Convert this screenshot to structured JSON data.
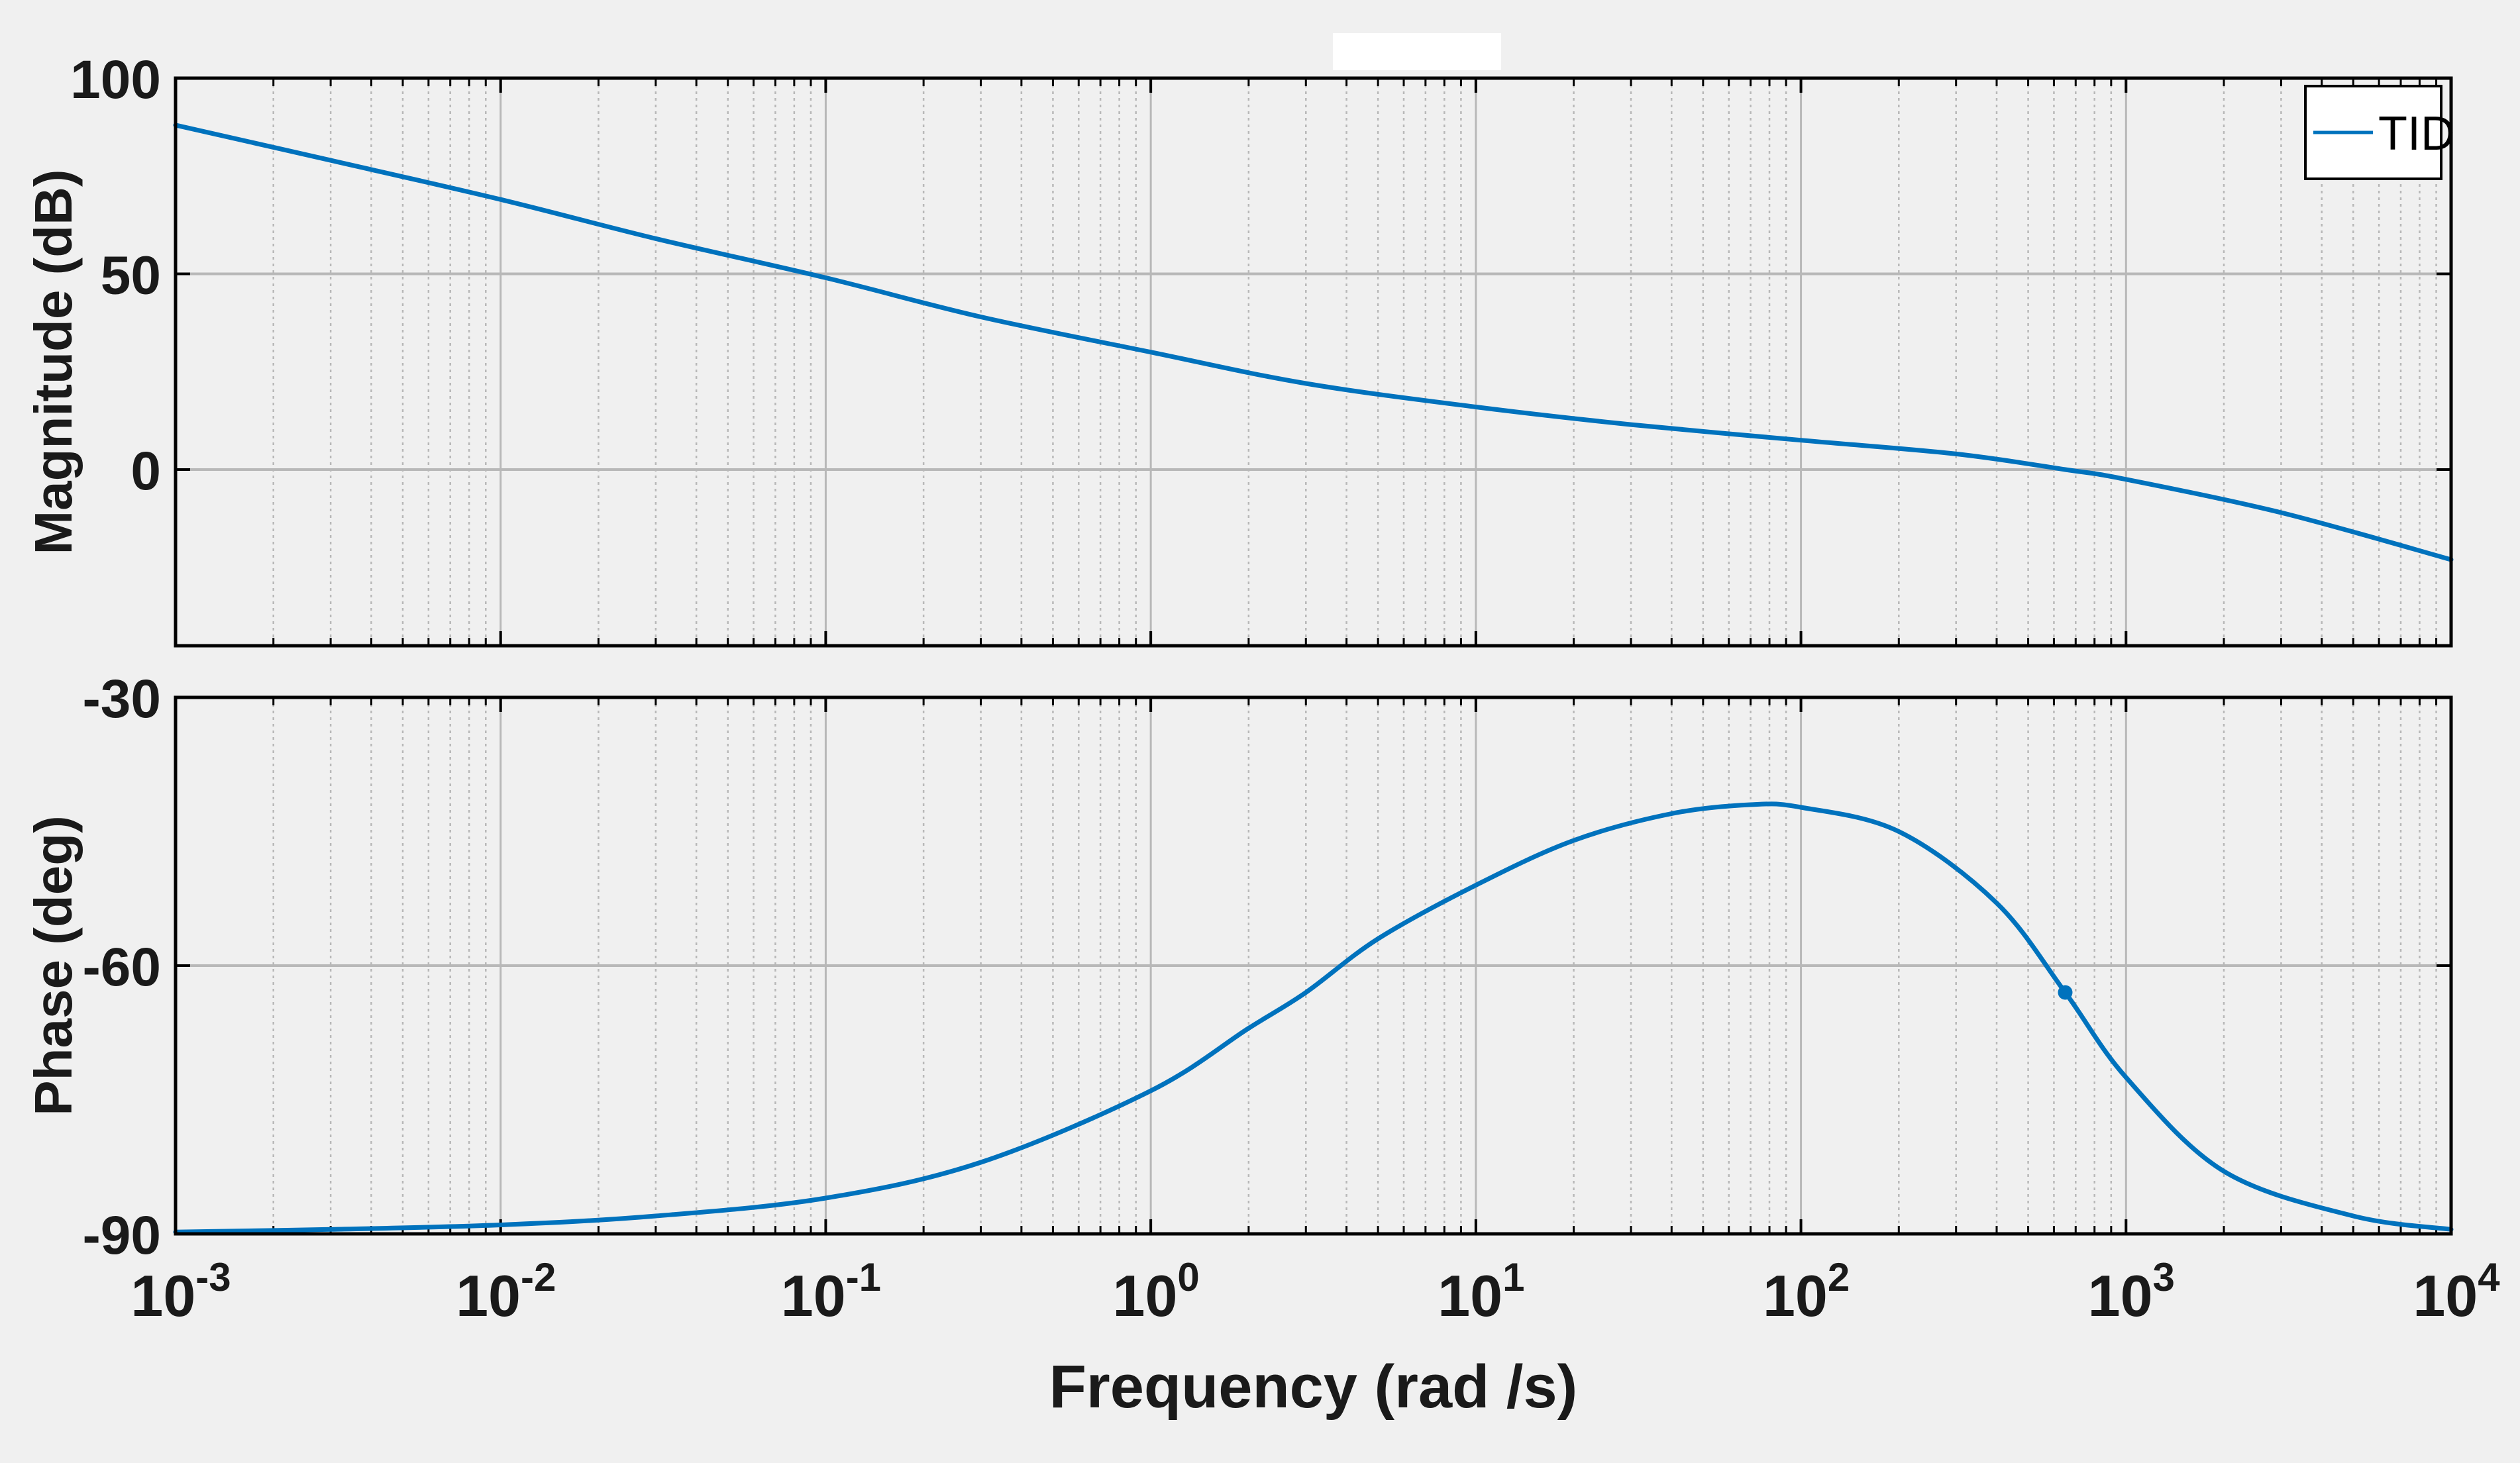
{
  "figure": {
    "background": "#f0f0f0",
    "axes_background": "#f0f0f0",
    "line_color": "#0072bd",
    "grid_color": "#b8b8b8"
  },
  "chart_data": [
    {
      "type": "line",
      "panel": "magnitude",
      "title": "",
      "xlabel": "",
      "ylabel": "Magnitude (dB)",
      "xscale": "log",
      "xlim": [
        0.001,
        10000
      ],
      "ylim": [
        -45,
        100
      ],
      "yticks": [
        0,
        50,
        100
      ],
      "ytick_labels": [
        "0",
        "50",
        "100"
      ],
      "grid": true,
      "legend": {
        "position": "top-right",
        "entries": [
          "TID"
        ]
      },
      "series": [
        {
          "name": "TID",
          "x": [
            0.001,
            0.003,
            0.01,
            0.03,
            0.1,
            0.3,
            1,
            3,
            10,
            30,
            100,
            300,
            650,
            1000,
            3000,
            10000
          ],
          "y": [
            88,
            79,
            69,
            59,
            49,
            39,
            30,
            22,
            16,
            11.5,
            7.5,
            4,
            0,
            -2.5,
            -11,
            -23
          ]
        }
      ]
    },
    {
      "type": "line",
      "panel": "phase",
      "title": "",
      "xlabel": "Frequency (rad /s)",
      "ylabel": "Phase (deg)",
      "xscale": "log",
      "xlim": [
        0.001,
        10000
      ],
      "ylim": [
        -90,
        -30
      ],
      "yticks": [
        -90,
        -60,
        -30
      ],
      "ytick_labels": [
        "-90",
        "-60",
        "-30"
      ],
      "xticks": [
        0.001,
        0.01,
        0.1,
        1,
        10,
        100,
        1000,
        10000
      ],
      "xtick_labels": [
        {
          "base": "10",
          "exp": "-3"
        },
        {
          "base": "10",
          "exp": "-2"
        },
        {
          "base": "10",
          "exp": "-1"
        },
        {
          "base": "10",
          "exp": "0"
        },
        {
          "base": "10",
          "exp": "1"
        },
        {
          "base": "10",
          "exp": "2"
        },
        {
          "base": "10",
          "exp": "3"
        },
        {
          "base": "10",
          "exp": "4"
        }
      ],
      "grid": true,
      "series": [
        {
          "name": "TID",
          "x": [
            0.001,
            0.003,
            0.01,
            0.03,
            0.1,
            0.3,
            1,
            2,
            3,
            5,
            10,
            20,
            40,
            70,
            100,
            200,
            400,
            650,
            1000,
            2000,
            5000,
            10000
          ],
          "y": [
            -89.8,
            -89.5,
            -89,
            -88,
            -86,
            -82,
            -74,
            -67,
            -63,
            -57,
            -51,
            -46,
            -43,
            -42,
            -42.3,
            -45,
            -53,
            -63,
            -72.5,
            -83,
            -88,
            -89.5
          ]
        }
      ],
      "marker": {
        "x": 650,
        "y": -63
      }
    }
  ]
}
